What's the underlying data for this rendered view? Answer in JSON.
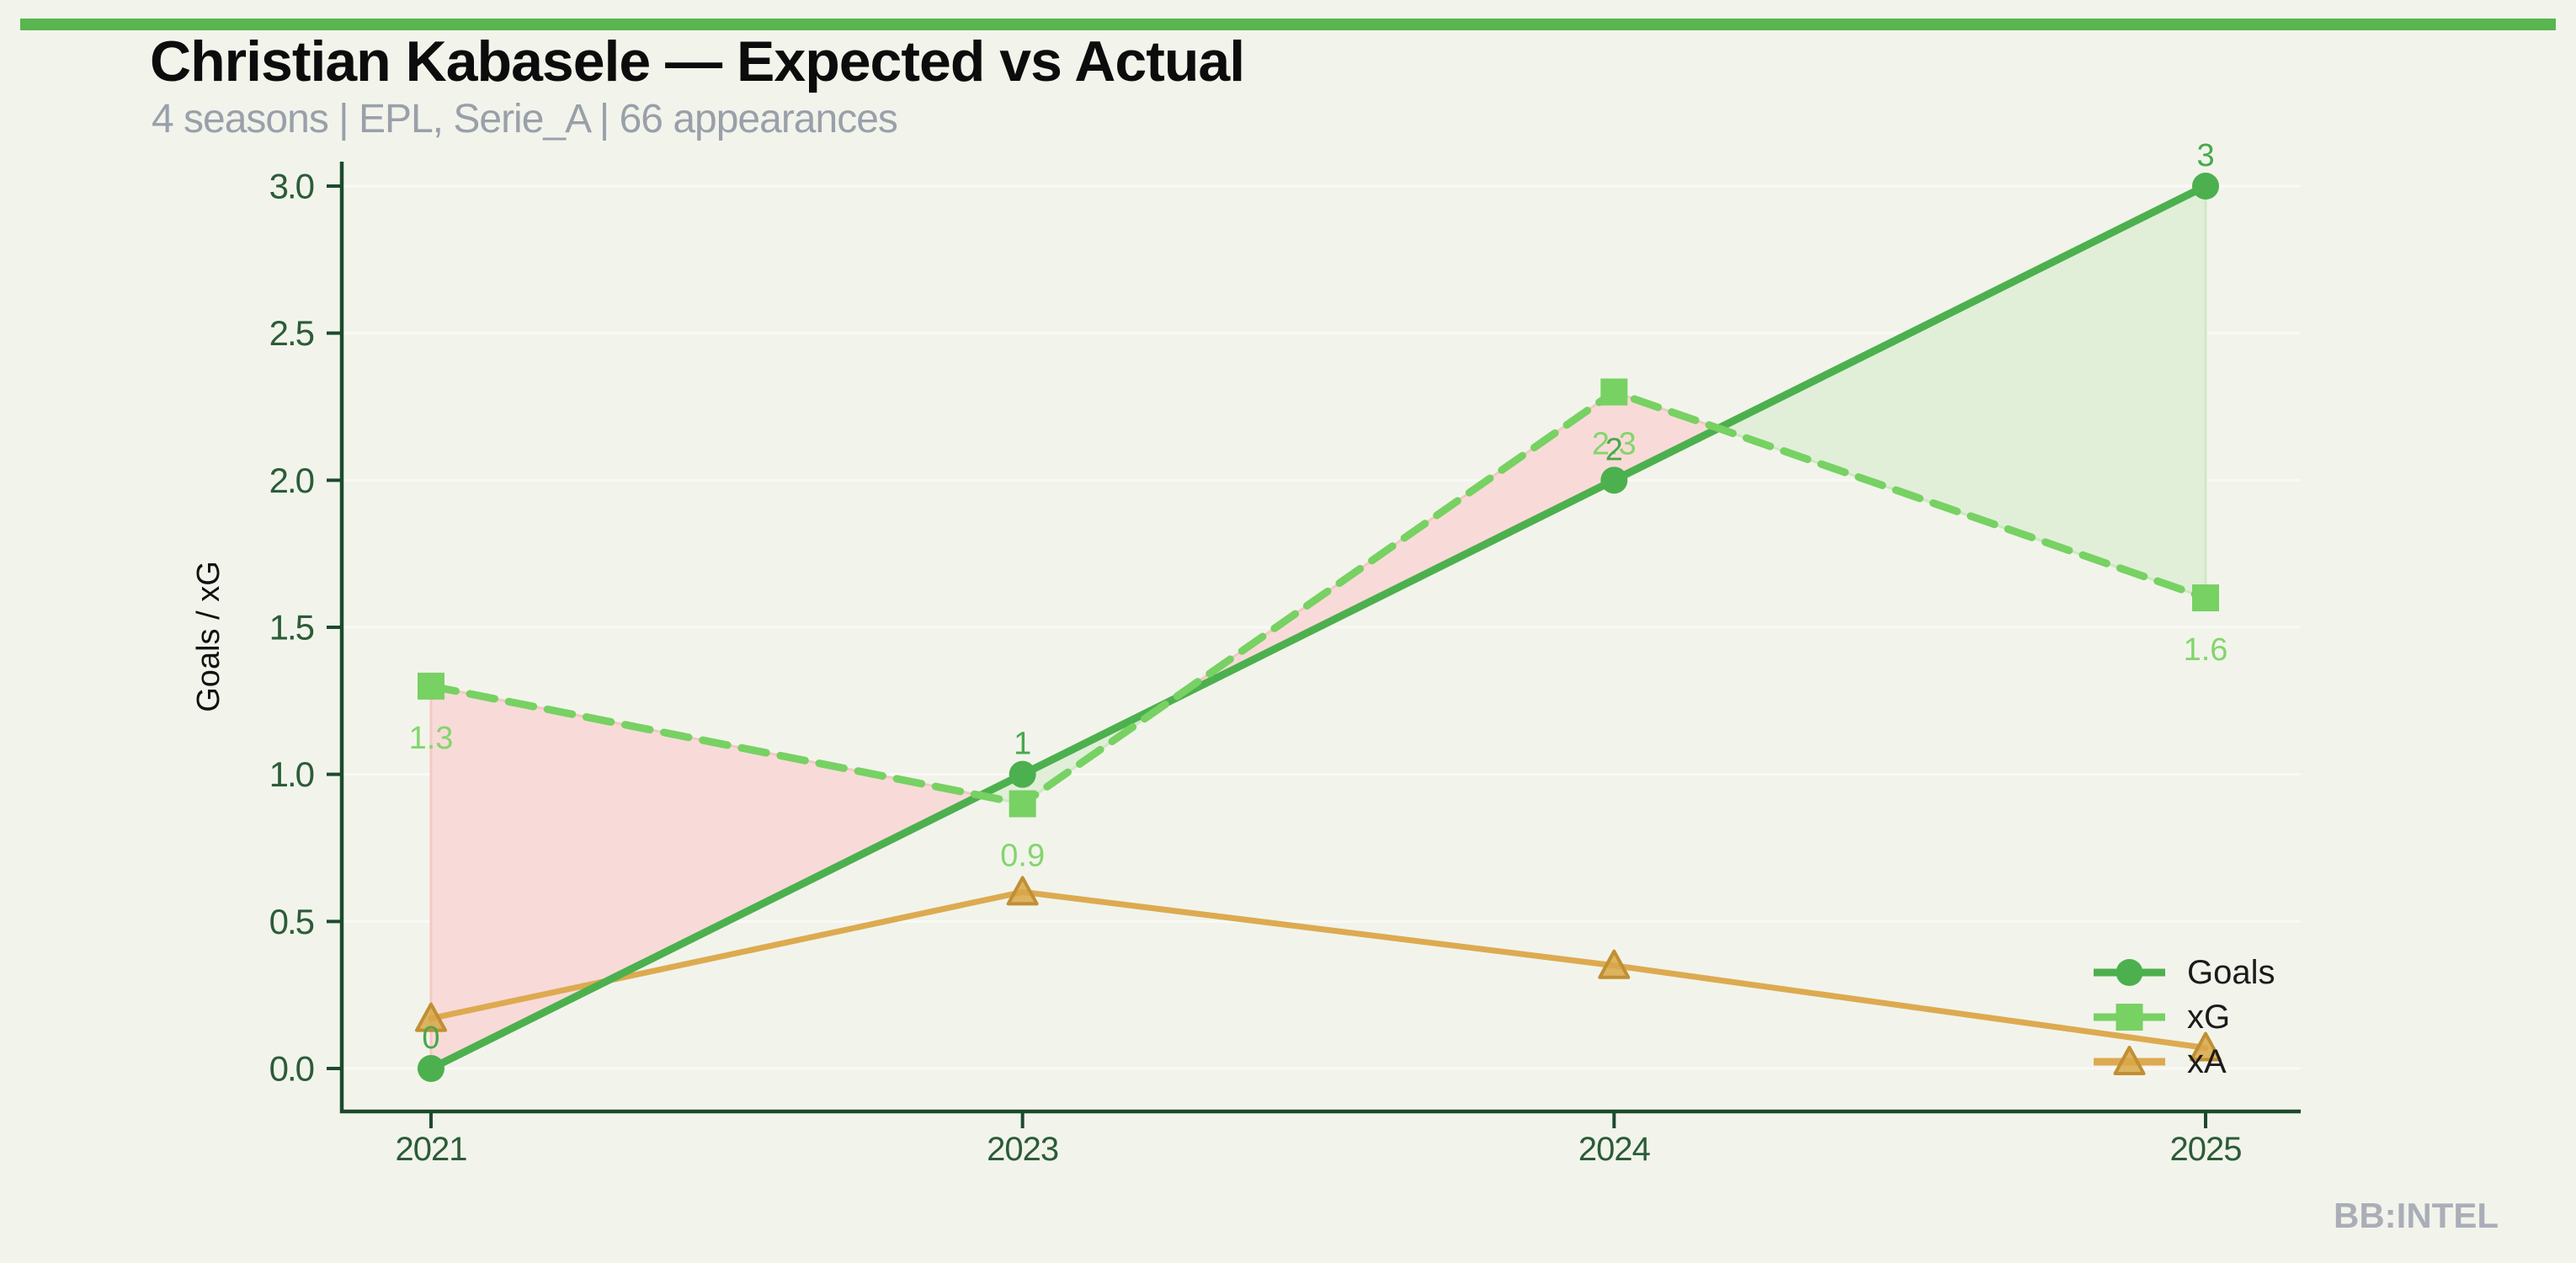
{
  "header": {
    "title": "Christian Kabasele — Expected vs Actual",
    "subtitle": "4 seasons | EPL, Serie_A | 66 appearances"
  },
  "footer": {
    "watermark": "BB:INTEL"
  },
  "accent": {
    "top_bar_color": "#58b54f"
  },
  "chart_data": {
    "type": "line",
    "categories": [
      "2021",
      "2023",
      "2024",
      "2025"
    ],
    "series": [
      {
        "name": "Goals",
        "values": [
          0,
          1,
          2,
          3
        ],
        "labels": [
          "0",
          "1",
          "2",
          "3"
        ],
        "color": "#4cb04e",
        "label_color": "#46a94b",
        "style": "solid",
        "marker": "circle",
        "label_position": "above"
      },
      {
        "name": "xG",
        "values": [
          1.3,
          0.9,
          2.3,
          1.6
        ],
        "labels": [
          "1.3",
          "0.9",
          "2.3",
          "1.6"
        ],
        "color": "#77d163",
        "label_color": "#84d56e",
        "style": "dashed",
        "marker": "square",
        "label_position": "below"
      },
      {
        "name": "xA",
        "values": [
          0.17,
          0.6,
          0.35,
          0.07
        ],
        "labels": [],
        "color": "#ddaa50",
        "marker_fill": "#d8a747",
        "marker_edge": "#c18f33",
        "style": "solid",
        "marker": "triangle",
        "label_position": "none"
      }
    ],
    "fill_between": {
      "series_a": "Goals",
      "series_b": "xG",
      "over_color": "#f8dbd8",
      "over_edge": "#f4c8c4",
      "under_color": "#e1efd9",
      "under_edge": "#cfe8c5"
    },
    "title": "Christian Kabasele — Expected vs Actual",
    "xlabel": "",
    "ylabel": "Goals / xG",
    "yticks": [
      "0.0",
      "0.5",
      "1.0",
      "1.5",
      "2.0",
      "2.5",
      "3.0"
    ],
    "ylim": [
      0,
      3
    ],
    "grid": true,
    "legend_position": "lower right",
    "axis_color": "#1c4a2c",
    "tick_label_color": "#2b5c38",
    "legend_labels": [
      "Goals",
      "xG",
      "xA"
    ]
  }
}
